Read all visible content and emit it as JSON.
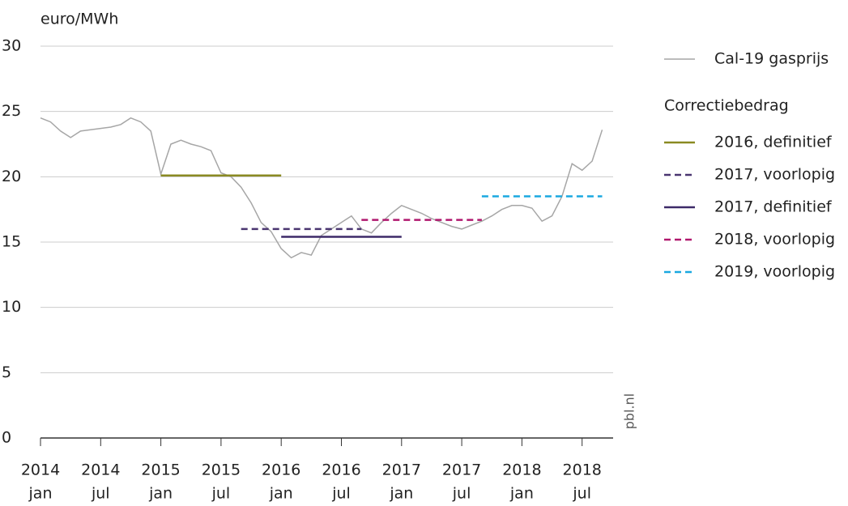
{
  "chart_data": {
    "type": "line",
    "y_label": "euro/MWh",
    "source": "pbl.nl",
    "legend_heading": "Correctiebedrag",
    "ylim": [
      0,
      30
    ],
    "yticks": [
      0,
      5,
      10,
      15,
      20,
      25,
      30
    ],
    "grid": true,
    "xlim": [
      "2014-01",
      "2018-10"
    ],
    "xticks": [
      {
        "value": "2014-01",
        "label": [
          "2014",
          "jan"
        ]
      },
      {
        "value": "2014-07",
        "label": [
          "2014",
          "jul"
        ]
      },
      {
        "value": "2015-01",
        "label": [
          "2015",
          "jan"
        ]
      },
      {
        "value": "2015-07",
        "label": [
          "2015",
          "jul"
        ]
      },
      {
        "value": "2016-01",
        "label": [
          "2016",
          "jan"
        ]
      },
      {
        "value": "2016-07",
        "label": [
          "2016",
          "jul"
        ]
      },
      {
        "value": "2017-01",
        "label": [
          "2017",
          "jan"
        ]
      },
      {
        "value": "2017-07",
        "label": [
          "2017",
          "jul"
        ]
      },
      {
        "value": "2018-01",
        "label": [
          "2018",
          "jan"
        ]
      },
      {
        "value": "2018-07",
        "label": [
          "2018",
          "jul"
        ]
      }
    ],
    "series": [
      {
        "name": "Cal-19 gasprijs",
        "color": "#a6a6a6",
        "dashed": false,
        "x": [
          "2014-01",
          "2014-02",
          "2014-03",
          "2014-04",
          "2014-05",
          "2014-06",
          "2014-07",
          "2014-08",
          "2014-09",
          "2014-10",
          "2014-11",
          "2014-12",
          "2015-01",
          "2015-02",
          "2015-03",
          "2015-04",
          "2015-05",
          "2015-06",
          "2015-07",
          "2015-08",
          "2015-09",
          "2015-10",
          "2015-11",
          "2015-12",
          "2016-01",
          "2016-02",
          "2016-03",
          "2016-04",
          "2016-05",
          "2016-06",
          "2016-07",
          "2016-08",
          "2016-09",
          "2016-10",
          "2016-11",
          "2016-12",
          "2017-01",
          "2017-02",
          "2017-03",
          "2017-04",
          "2017-05",
          "2017-06",
          "2017-07",
          "2017-08",
          "2017-09",
          "2017-10",
          "2017-11",
          "2017-12",
          "2018-01",
          "2018-02",
          "2018-03",
          "2018-04",
          "2018-05",
          "2018-06",
          "2018-07",
          "2018-08",
          "2018-09"
        ],
        "values": [
          24.5,
          24.2,
          23.5,
          23.0,
          23.5,
          23.6,
          23.7,
          23.8,
          24.0,
          24.5,
          24.2,
          23.5,
          20.2,
          22.5,
          22.8,
          22.5,
          22.3,
          22.0,
          20.3,
          20.0,
          19.2,
          18.0,
          16.5,
          15.8,
          14.5,
          13.8,
          14.2,
          14.0,
          15.5,
          16.0,
          16.5,
          17.0,
          16.0,
          15.7,
          16.5,
          17.2,
          17.8,
          17.5,
          17.2,
          16.8,
          16.5,
          16.2,
          16.0,
          16.3,
          16.6,
          17.0,
          17.5,
          17.8,
          17.8,
          17.6,
          16.6,
          17.0,
          18.5,
          21.0,
          20.5,
          21.2,
          23.6
        ]
      },
      {
        "name": "2016, definitief",
        "color": "#8a8a22",
        "dashed": false,
        "x": [
          "2015-01",
          "2016-01"
        ],
        "values": [
          20.1,
          20.1
        ]
      },
      {
        "name": "2017, voorlopig",
        "color": "#4a3570",
        "dashed": true,
        "x": [
          "2015-09",
          "2016-09"
        ],
        "values": [
          16.0,
          16.0
        ]
      },
      {
        "name": "2017, definitief",
        "color": "#3d2a68",
        "dashed": false,
        "x": [
          "2016-01",
          "2017-01"
        ],
        "values": [
          15.4,
          15.4
        ]
      },
      {
        "name": "2018, voorlopig",
        "color": "#b0186e",
        "dashed": true,
        "x": [
          "2016-09",
          "2017-09"
        ],
        "values": [
          16.7,
          16.7
        ]
      },
      {
        "name": "2019, voorlopig",
        "color": "#1aa8e0",
        "dashed": true,
        "x": [
          "2017-09",
          "2018-09"
        ],
        "values": [
          18.5,
          18.5
        ]
      }
    ]
  }
}
